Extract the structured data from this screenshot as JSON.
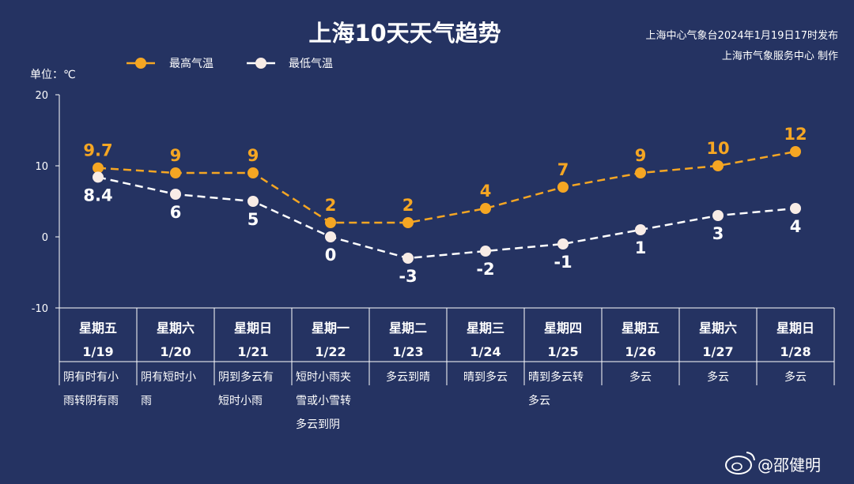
{
  "chart_data": {
    "type": "line",
    "title": "上海10天天气趋势",
    "source_lines": [
      "上海中心气象台2024年1月19日17时发布",
      "上海市气象服务中心 制作"
    ],
    "unit_label": "单位：℃",
    "ylim": [
      -10,
      20
    ],
    "yticks": [
      "20",
      "10",
      "0",
      "-10"
    ],
    "legend_position": "top",
    "days": [
      {
        "weekday": "星期五",
        "date": "1/19",
        "weather": [
          "阴有时有小",
          "雨转阴有雨"
        ]
      },
      {
        "weekday": "星期六",
        "date": "1/20",
        "weather": [
          "阴有短时小",
          "雨"
        ]
      },
      {
        "weekday": "星期日",
        "date": "1/21",
        "weather": [
          "阴到多云有",
          "短时小雨"
        ]
      },
      {
        "weekday": "星期一",
        "date": "1/22",
        "weather": [
          "短时小雨夹",
          "雪或小雪转",
          "多云到阴"
        ]
      },
      {
        "weekday": "星期二",
        "date": "1/23",
        "weather": [
          "多云到晴"
        ]
      },
      {
        "weekday": "星期三",
        "date": "1/24",
        "weather": [
          "晴到多云"
        ]
      },
      {
        "weekday": "星期四",
        "date": "1/25",
        "weather": [
          "晴到多云转",
          "多云"
        ]
      },
      {
        "weekday": "星期五",
        "date": "1/26",
        "weather": [
          "多云"
        ]
      },
      {
        "weekday": "星期六",
        "date": "1/27",
        "weather": [
          "多云"
        ]
      },
      {
        "weekday": "星期日",
        "date": "1/28",
        "weather": [
          "多云"
        ]
      }
    ],
    "series": [
      {
        "name": "最高气温",
        "color": "#f5a623",
        "values": [
          9.7,
          9,
          9,
          2,
          2,
          4,
          7,
          9,
          10,
          12
        ],
        "labels": [
          "9.7",
          "9",
          "9",
          "2",
          "2",
          "4",
          "7",
          "9",
          "10",
          "12"
        ]
      },
      {
        "name": "最低气温",
        "color": "#ffffff",
        "values": [
          8.4,
          6,
          5,
          0,
          -3,
          -2,
          -1,
          1,
          3,
          4
        ],
        "labels": [
          "8.4",
          "6",
          "5",
          "0",
          "-3",
          "-2",
          "-1",
          "1",
          "3",
          "4"
        ]
      }
    ]
  },
  "watermark": "@邵健明"
}
